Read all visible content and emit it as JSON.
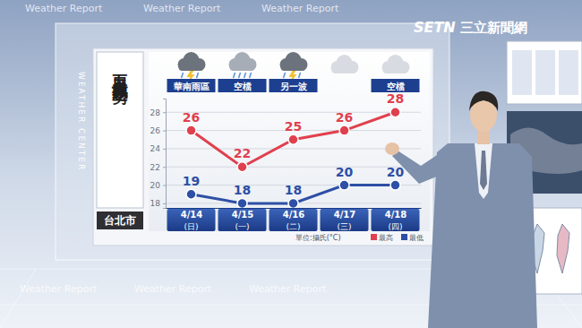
{
  "chart_data": {
    "type": "line",
    "title": "五日天氣趨勢",
    "subtitle": "台北市",
    "categories": [
      "4/14",
      "4/15",
      "4/16",
      "4/17",
      "4/18"
    ],
    "weekdays": [
      "(日)",
      "(一)",
      "(二)",
      "(三)",
      "(四)"
    ],
    "annotations": [
      "華南雨區",
      "空檔",
      "另一波",
      null,
      "空檔"
    ],
    "unit_label": "單位:攝氏(°C)",
    "series": [
      {
        "name": "最高",
        "color": "#e0404e",
        "marker": "circle",
        "values": [
          26,
          22,
          25,
          26,
          28
        ]
      },
      {
        "name": "最低",
        "color": "#2d4fa5",
        "marker": "circle",
        "values": [
          19,
          18,
          18,
          20,
          20
        ]
      }
    ],
    "ylim": [
      17.5,
      29.5
    ],
    "yticks": [
      18,
      20,
      22,
      24,
      26,
      28
    ],
    "grid": true,
    "data_labels": true,
    "legend": "bottom right"
  },
  "watermark": "Weather Report",
  "side_label": "WEATHER CENTER",
  "logo": [
    "SETN",
    "三立新聞網"
  ]
}
